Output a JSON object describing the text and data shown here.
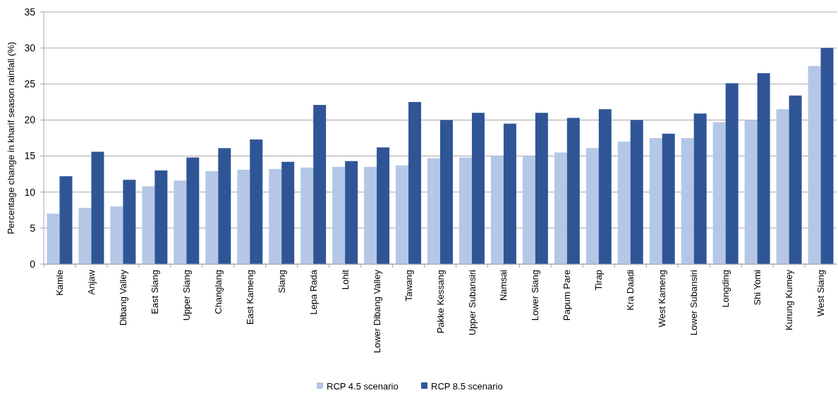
{
  "chart_data": {
    "type": "bar",
    "ylabel": "Percentage change in kharif season rainfall (%)",
    "categories": [
      "Kamle",
      "Anjaw",
      "Dibang Valley",
      "East Siang",
      "Upper Siang",
      "Changlang",
      "East Kameng",
      "Siang",
      "Lepa Rada",
      "Lohit",
      "Lower Dibang Valley",
      "Tawang",
      "Pakke Kessang",
      "Upper Subansiri",
      "Namsai",
      "Lower Siang",
      "Papum Pare",
      "Tirap",
      "Kra Daadi",
      "West Kameng",
      "Lower Subansiri",
      "Longding",
      "Shi Yomi",
      "Kurung Kumey",
      "West Siang"
    ],
    "series": [
      {
        "name": "RCP 4.5 scenario",
        "color": "#b4c7e7",
        "values": [
          7.0,
          7.8,
          8.0,
          10.8,
          11.6,
          12.9,
          13.1,
          13.2,
          13.4,
          13.5,
          13.5,
          13.7,
          14.7,
          14.8,
          15.0,
          15.0,
          15.5,
          16.1,
          17.0,
          17.5,
          17.5,
          19.7,
          20.0,
          21.5,
          27.5
        ]
      },
      {
        "name": "RCP 8.5 scenario",
        "color": "#2f5597",
        "values": [
          12.2,
          15.6,
          11.7,
          13.0,
          14.8,
          16.1,
          17.3,
          14.2,
          22.1,
          14.3,
          16.2,
          22.5,
          20.0,
          21.0,
          19.5,
          21.0,
          20.3,
          21.5,
          20.0,
          18.1,
          20.9,
          25.1,
          26.5,
          23.4,
          30.0
        ]
      }
    ],
    "ylim": [
      0,
      35
    ],
    "yticks": [
      0,
      5,
      10,
      15,
      20,
      25,
      30,
      35
    ],
    "grid": "y",
    "legend": "bottom"
  }
}
